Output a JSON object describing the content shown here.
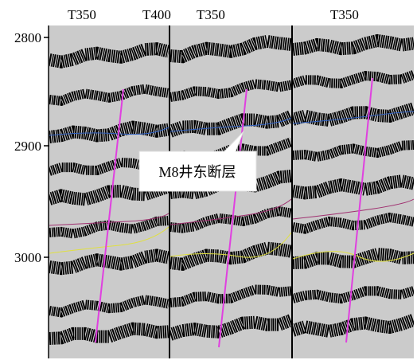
{
  "top_labels": [
    "T350",
    "T400",
    "T350",
    "T350"
  ],
  "depth_labels": [
    2800,
    2900,
    3000
  ],
  "callout": "M8井东断层"
}
